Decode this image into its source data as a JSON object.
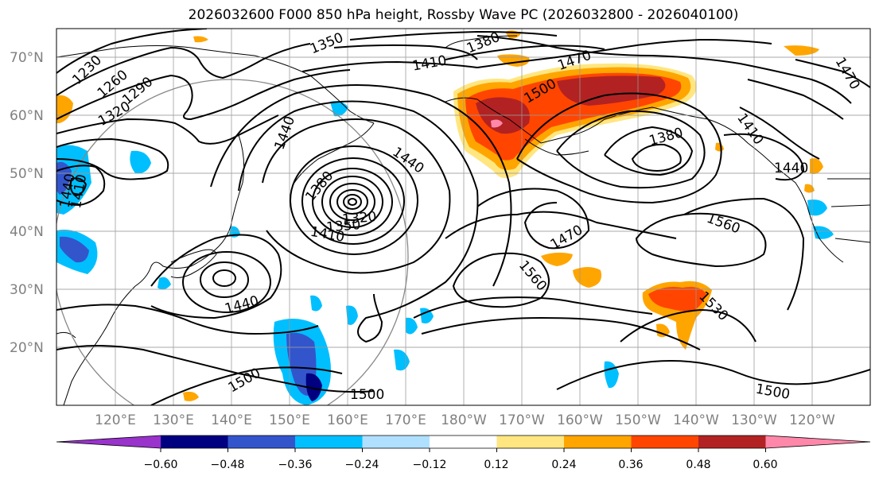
{
  "title": "2026032600 F000 850 hPa height, Rossby Wave PC (2026032800 - 2026040100)",
  "lat_labels": [
    "70°N",
    "60°N",
    "50°N",
    "40°N",
    "30°N",
    "20°N"
  ],
  "lon_labels": [
    "120°E",
    "130°E",
    "140°E",
    "150°E",
    "160°E",
    "170°E",
    "180°W",
    "170°W",
    "160°W",
    "150°W",
    "140°W",
    "130°W",
    "120°W"
  ],
  "contour_labels": [
    "1230",
    "1260",
    "1290",
    "1320",
    "1350",
    "1380",
    "1410",
    "1440",
    "1470",
    "1500",
    "1380",
    "1440",
    "1410",
    "1350",
    "1320",
    "1380",
    "1440",
    "1470",
    "1560",
    "1560",
    "1530",
    "1500",
    "1500",
    "1500",
    "1410",
    "1470",
    "1440",
    "1440",
    "1410"
  ],
  "colorbar": {
    "ticks": [
      "−0.60",
      "−0.48",
      "−0.36",
      "−0.24",
      "−0.12",
      "0.12",
      "0.24",
      "0.36",
      "0.48",
      "0.60"
    ],
    "colors": [
      "#9933cc",
      "#000080",
      "#3355cc",
      "#00bfff",
      "#b0e0ff",
      "#ffffff",
      "#ffe680",
      "#ffa500",
      "#ff4500",
      "#b22222",
      "#ff88aa"
    ]
  }
}
